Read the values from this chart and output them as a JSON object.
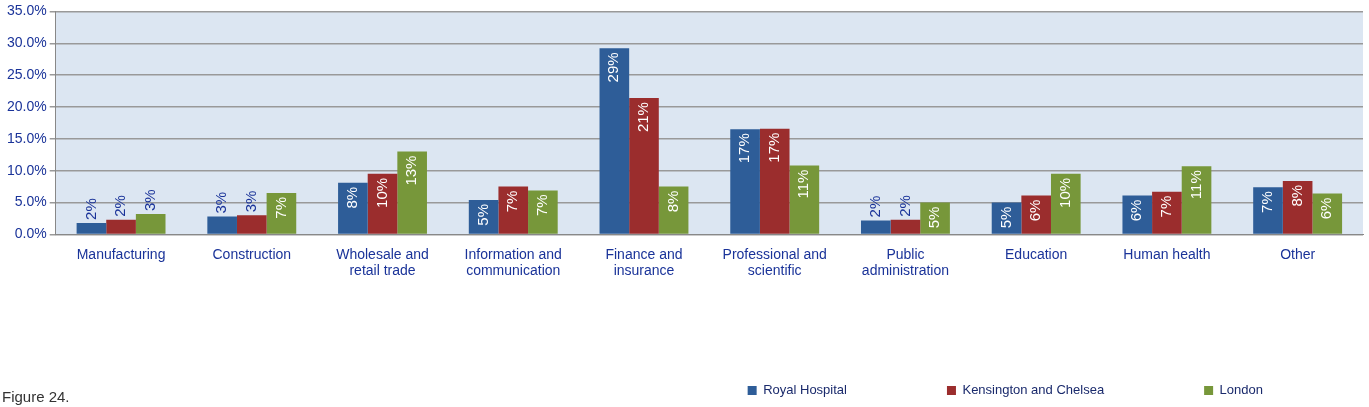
{
  "chart_data": {
    "type": "bar",
    "categories": [
      "Manufacturing",
      "Construction",
      "Wholesale and retail trade",
      "Information and communication",
      "Finance and insurance",
      "Professional and scientific",
      "Public administration",
      "Education",
      "Human health",
      "Other"
    ],
    "series": [
      {
        "name": "Royal Hospital",
        "color": "#2e5d98",
        "values": [
          1.8,
          2.8,
          8.1,
          5.4,
          29.2,
          16.5,
          2.2,
          5.0,
          6.1,
          7.4
        ],
        "value_labels": [
          "2%",
          "3%",
          "8%",
          "5%",
          "29%",
          "17%",
          "2%",
          "5%",
          "6%",
          "7%"
        ]
      },
      {
        "name": "Kensington and Chelsea",
        "color": "#9b2d2d",
        "values": [
          2.3,
          3.0,
          9.5,
          7.5,
          21.4,
          16.6,
          2.3,
          6.1,
          6.7,
          8.4
        ],
        "value_labels": [
          "2%",
          "3%",
          "10%",
          "7%",
          "21%",
          "17%",
          "2%",
          "6%",
          "7%",
          "8%"
        ]
      },
      {
        "name": "London",
        "color": "#77973a",
        "values": [
          3.2,
          6.5,
          13.0,
          6.9,
          7.5,
          10.8,
          5.0,
          9.5,
          10.7,
          6.4
        ],
        "value_labels": [
          "3%",
          "7%",
          "13%",
          "7%",
          "8%",
          "11%",
          "5%",
          "10%",
          "11%",
          "6%"
        ]
      }
    ],
    "ylim": [
      0,
      35
    ],
    "yticks": [
      {
        "value": 0,
        "label": "0.0%"
      },
      {
        "value": 5,
        "label": "5.0%"
      },
      {
        "value": 10,
        "label": "10.0%"
      },
      {
        "value": 15,
        "label": "15.0%"
      },
      {
        "value": 20,
        "label": "20.0%"
      },
      {
        "value": 25,
        "label": "25.0%"
      },
      {
        "value": 30,
        "label": "30.0%"
      },
      {
        "value": 35,
        "label": "35.0%"
      }
    ],
    "grid": "y",
    "legend": "bottom right",
    "annotations": [
      "Figure 24."
    ]
  }
}
